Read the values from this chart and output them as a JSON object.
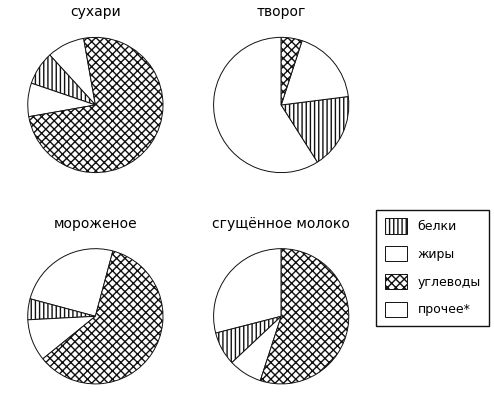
{
  "charts": [
    {
      "title": "сухари",
      "values": [
        9,
        8,
        8,
        75
      ],
      "labels": [
        "прочее",
        "белки",
        "жиры",
        "углеводы"
      ],
      "start_angle": 100,
      "counterclock": true
    },
    {
      "title": "творог",
      "values": [
        59,
        18,
        18,
        5
      ],
      "labels": [
        "прочее",
        "белки",
        "жиры",
        "углеводы"
      ],
      "start_angle": 90,
      "counterclock": true
    },
    {
      "title": "мороженое",
      "values": [
        25,
        5,
        10,
        60
      ],
      "labels": [
        "прочее",
        "белки",
        "жиры",
        "углеводы"
      ],
      "start_angle": 75,
      "counterclock": true
    },
    {
      "title": "сгущённое молоко",
      "values": [
        29,
        8,
        8,
        55
      ],
      "labels": [
        "прочее",
        "белки",
        "жиры",
        "углеводы"
      ],
      "start_angle": 90,
      "counterclock": true
    }
  ],
  "hatch_map": {
    "белки": "||||",
    "жиры": "====",
    "углеводы": ".....",
    "прочее": ""
  },
  "legend_labels": [
    "белки",
    "жиры",
    "углеводы",
    "прочее*"
  ],
  "legend_hatches": [
    "||||",
    "====",
    ".....",
    ""
  ],
  "edgecolor": "#111111",
  "background": "white",
  "title_fontsize": 10,
  "legend_fontsize": 9
}
